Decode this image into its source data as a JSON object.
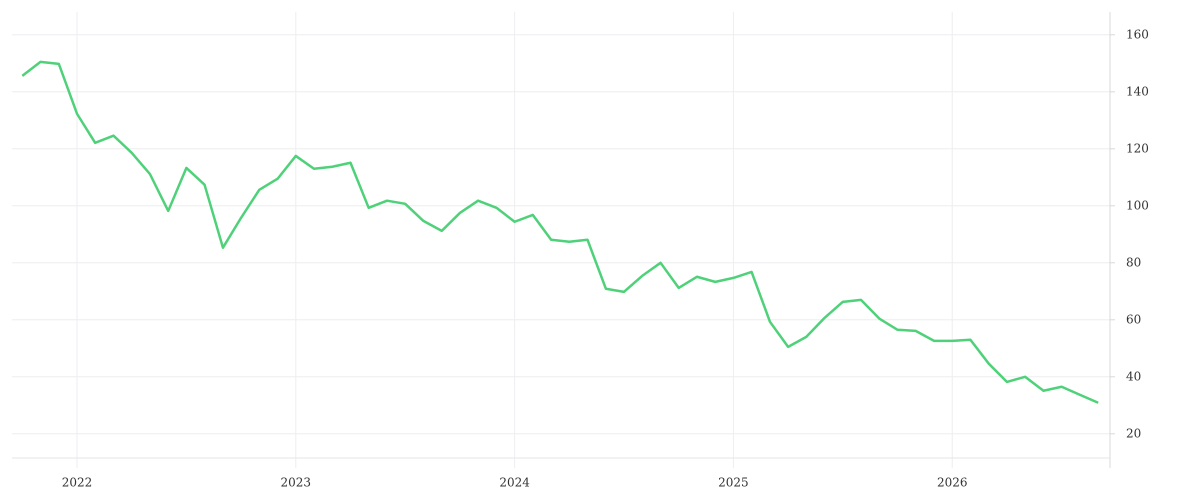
{
  "chart_data": {
    "type": "line",
    "x": [
      2021.75,
      2021.833,
      2021.917,
      2022,
      2022.083,
      2022.167,
      2022.25,
      2022.333,
      2022.417,
      2022.5,
      2022.583,
      2022.667,
      2022.75,
      2022.833,
      2022.917,
      2023,
      2023.083,
      2023.167,
      2023.25,
      2023.333,
      2023.417,
      2023.5,
      2023.583,
      2023.667,
      2023.75,
      2023.833,
      2023.917,
      2024,
      2024.083,
      2024.167,
      2024.25,
      2024.333,
      2024.417,
      2024.5,
      2024.583,
      2024.667,
      2024.75,
      2024.833,
      2024.917,
      2025,
      2025.083,
      2025.167,
      2025.25,
      2025.333,
      2025.417,
      2025.5,
      2025.583,
      2025.667,
      2025.75,
      2025.833,
      2025.917,
      2026,
      2026.083,
      2026.167,
      2026.25,
      2026.333,
      2026.417,
      2026.5,
      2026.583,
      2026.667
    ],
    "series": [
      {
        "color": "#4fd17a",
        "values": [
          145.6,
          150.5,
          149.8,
          132.3,
          122.1,
          124.6,
          118.6,
          111.2,
          98.2,
          113.3,
          107.4,
          85.3,
          95.8,
          105.6,
          109.5,
          117.5,
          113,
          113.7,
          115.1,
          99.3,
          101.8,
          100.7,
          94.7,
          91.2,
          97.5,
          101.8,
          99.3,
          94.4,
          96.8,
          88.1,
          87.4,
          88.1,
          70.9,
          69.8,
          75.4,
          80,
          71.2,
          75.1,
          73.3,
          74.7,
          76.8,
          59.3,
          50.5,
          54,
          60.7,
          66.3,
          67,
          60.4,
          56.5,
          56.1,
          52.6,
          52.6,
          53,
          44.6,
          38.2,
          40,
          35.1,
          36.5,
          33.7,
          30.9
        ]
      }
    ],
    "xlim": [
      2021.703,
      2026.721
    ],
    "xticks": [
      2022,
      2023,
      2024,
      2025,
      2026
    ],
    "ylim": [
      8,
      168
    ],
    "yticks": [
      20,
      40,
      60,
      80,
      100,
      120,
      140,
      160
    ],
    "grid": true
  }
}
